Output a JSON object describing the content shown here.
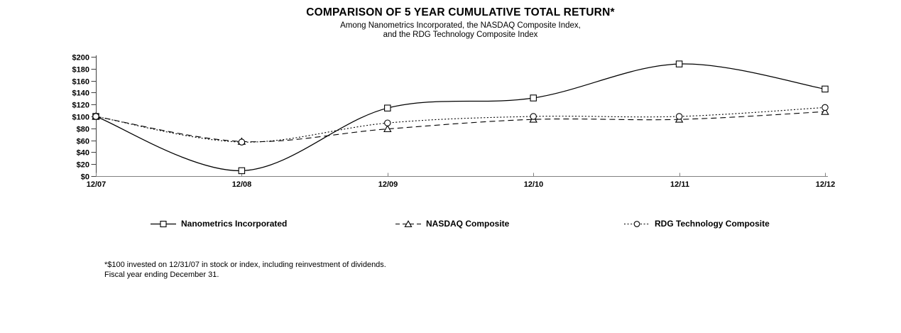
{
  "chart_data": {
    "type": "line",
    "title": "COMPARISON OF 5 YEAR CUMULATIVE TOTAL RETURN*",
    "subtitle_lines": [
      "Among Nanometrics Incorporated, the NASDAQ  Composite Index,",
      "and the RDG Technology Composite Index"
    ],
    "x_labels": [
      "12/07",
      "12/08",
      "12/09",
      "12/10",
      "12/11",
      "12/12"
    ],
    "xlabel": "",
    "ylabel": "",
    "ylim": [
      0,
      200
    ],
    "grid": false,
    "legend_position": "bottom",
    "y_ticks": [
      {
        "value": 0,
        "label": "$0"
      },
      {
        "value": 20,
        "label": "$20"
      },
      {
        "value": 40,
        "label": "$40"
      },
      {
        "value": 60,
        "label": "$60"
      },
      {
        "value": 80,
        "label": "$80"
      },
      {
        "value": 100,
        "label": "$100"
      },
      {
        "value": 120,
        "label": "$120"
      },
      {
        "value": 140,
        "label": "$140"
      },
      {
        "value": 160,
        "label": "$160"
      },
      {
        "value": 180,
        "label": "$180"
      },
      {
        "value": 200,
        "label": "$200"
      }
    ],
    "series": [
      {
        "name": "Nanometrics Incorporated",
        "line_style": "solid",
        "marker": "square",
        "color": "#000000",
        "values": [
          100,
          9,
          114,
          131,
          188,
          146
        ]
      },
      {
        "name": "NASDAQ Composite",
        "line_style": "dashed",
        "marker": "triangle",
        "color": "#000000",
        "values": [
          100,
          58,
          79,
          95,
          95,
          108
        ]
      },
      {
        "name": "RDG Technology Composite",
        "line_style": "dotted",
        "marker": "circle",
        "color": "#000000",
        "values": [
          100,
          57,
          89,
          100,
          100,
          115
        ]
      }
    ],
    "axis_colors": {
      "y_axis": "#3f3f3f",
      "x_axis": "#808080"
    }
  },
  "legend": {
    "items": [
      {
        "label": "Nanometrics Incorporated"
      },
      {
        "label": "NASDAQ Composite"
      },
      {
        "label": "RDG Technology Composite"
      }
    ]
  },
  "footnote": {
    "line1": "*$100 invested on 12/31/07 in stock or index, including reinvestment of dividends.",
    "line2": "Fiscal year ending December 31."
  }
}
